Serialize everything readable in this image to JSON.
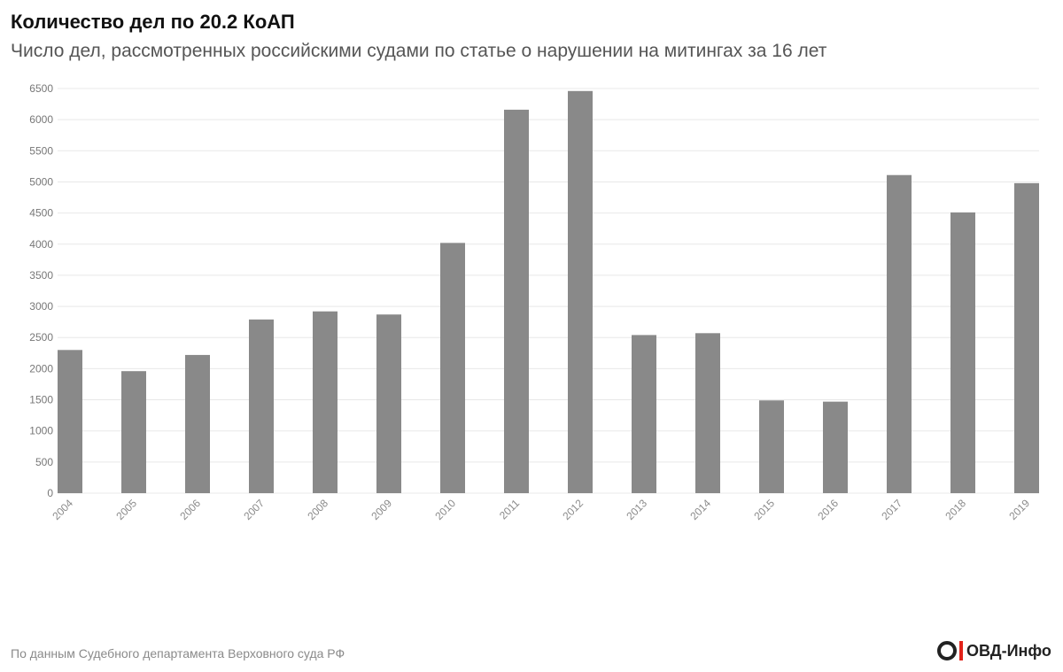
{
  "title": "Количество дел по 20.2 КоАП",
  "subtitle": "Число дел, рассмотренных российскими судами по статье о нарушении на митингах за 16 лет",
  "source": "По данным Судебного департамента Верховного суда РФ",
  "logo_text": "ОВД-Инфо",
  "colors": {
    "bar": "#898989",
    "logo_accent": "#e2231a"
  },
  "chart_data": {
    "type": "bar",
    "categories": [
      "2004",
      "2005",
      "2006",
      "2007",
      "2008",
      "2009",
      "2010",
      "2011",
      "2012",
      "2013",
      "2014",
      "2015",
      "2016",
      "2017",
      "2018",
      "2019"
    ],
    "values": [
      2300,
      1960,
      2220,
      2790,
      2920,
      2870,
      4020,
      6160,
      6460,
      2540,
      2570,
      1490,
      1470,
      5110,
      4510,
      4980
    ],
    "title": "Количество дел по 20.2 КоАП",
    "xlabel": "",
    "ylabel": "",
    "ylim": [
      0,
      6500
    ],
    "yticks": [
      0,
      500,
      1000,
      1500,
      2000,
      2500,
      3000,
      3500,
      4000,
      4500,
      5000,
      5500,
      6000,
      6500
    ],
    "grid": true,
    "x_tick_rotation": -45
  }
}
